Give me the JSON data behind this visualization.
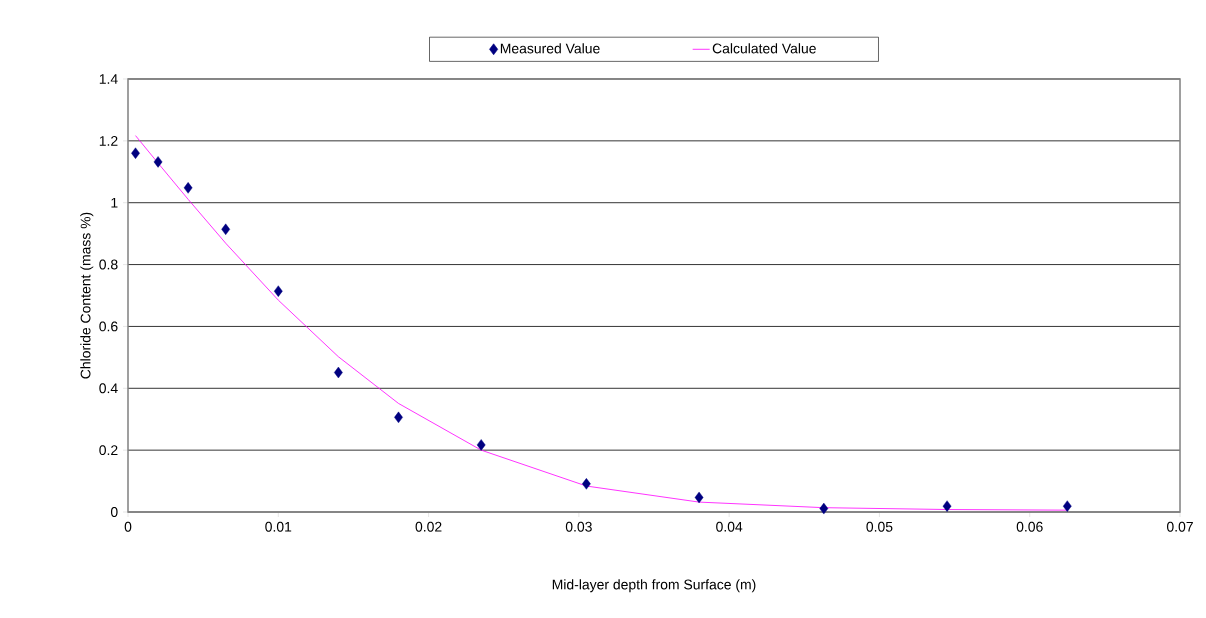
{
  "chart_data": {
    "type": "scatter",
    "xlabel": "Mid-layer depth from Surface (m)",
    "ylabel": "Chloride Content (mass %)",
    "xlim": [
      0,
      0.07
    ],
    "xticks": [
      0,
      0.01,
      0.02,
      0.03,
      0.04,
      0.05,
      0.06,
      0.07
    ],
    "ylim": [
      0,
      1.4
    ],
    "yticks": [
      0,
      0.2,
      0.4,
      0.6,
      0.8,
      1,
      1.2,
      1.4
    ],
    "grid": "y",
    "legend": "top",
    "marker": "diamond",
    "series": [
      {
        "name": "Measured Value",
        "color": "#000080",
        "x": [
          0.0005,
          0.002,
          0.004,
          0.0065,
          0.01,
          0.014,
          0.018,
          0.0235,
          0.0305,
          0.038,
          0.0463,
          0.0545,
          0.0625
        ],
        "values": [
          1.16,
          1.132,
          1.048,
          0.914,
          0.714,
          0.451,
          0.306,
          0.217,
          0.091,
          0.047,
          0.011,
          0.019,
          0.019
        ]
      },
      {
        "name": "Calculated Value",
        "type": "line",
        "marker": "none",
        "color": "#ff00ff",
        "x": [
          0.0005,
          0.002,
          0.004,
          0.0065,
          0.01,
          0.014,
          0.018,
          0.0235,
          0.0305,
          0.038,
          0.0463,
          0.0545,
          0.0625
        ],
        "values": [
          1.217,
          1.128,
          1.011,
          0.869,
          0.685,
          0.502,
          0.351,
          0.2,
          0.084,
          0.032,
          0.014,
          0.008,
          0.006
        ]
      }
    ]
  }
}
